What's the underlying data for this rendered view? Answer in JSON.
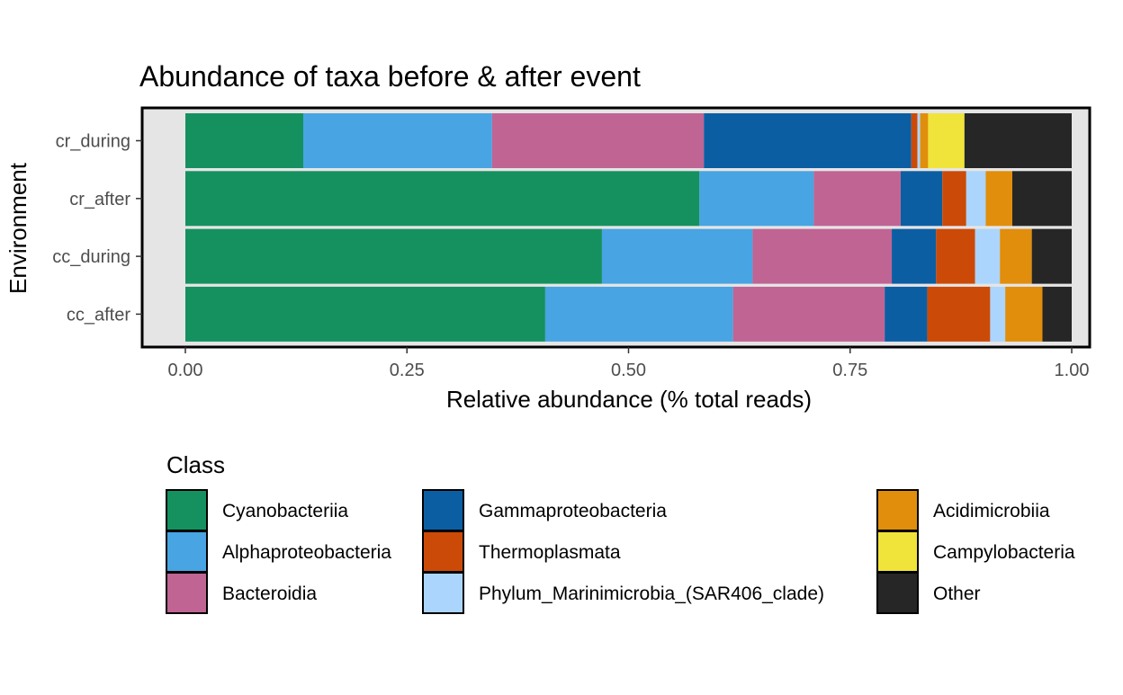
{
  "chart_data": {
    "type": "bar",
    "orientation": "horizontal",
    "stacked": true,
    "title": "Abundance of taxa before & after event",
    "xlabel": "Relative abundance (% total reads)",
    "ylabel": "Environment",
    "xlim": [
      0,
      1
    ],
    "x_ticks": [
      "0.00",
      "0.25",
      "0.50",
      "0.75",
      "1.00"
    ],
    "categories": [
      "cr_during",
      "cr_after",
      "cc_during",
      "cc_after"
    ],
    "legend_title": "Class",
    "legend_position": "bottom",
    "grid": false,
    "series": [
      {
        "name": "Cyanobacteriia",
        "color": "#159160",
        "values": [
          0.133,
          0.58,
          0.47,
          0.406
        ]
      },
      {
        "name": "Alphaproteobacteria",
        "color": "#48A4E2",
        "values": [
          0.213,
          0.129,
          0.17,
          0.212
        ]
      },
      {
        "name": "Bacteroidia",
        "color": "#C06494",
        "values": [
          0.239,
          0.098,
          0.157,
          0.171
        ]
      },
      {
        "name": "Gammaproteobacteria",
        "color": "#0C5EA3",
        "values": [
          0.234,
          0.047,
          0.05,
          0.048
        ]
      },
      {
        "name": "Thermoplasmata",
        "color": "#CC4A08",
        "values": [
          0.007,
          0.027,
          0.044,
          0.071
        ]
      },
      {
        "name": "Phylum_Marinimicrobia_(SAR406_clade)",
        "color": "#ABD5FC",
        "values": [
          0.003,
          0.022,
          0.028,
          0.017
        ]
      },
      {
        "name": "Acidimicrobiia",
        "color": "#E08E0C",
        "values": [
          0.009,
          0.03,
          0.036,
          0.042
        ]
      },
      {
        "name": "Campylobacteria",
        "color": "#F0E43A",
        "values": [
          0.041,
          0.0,
          0.0,
          0.0
        ]
      },
      {
        "name": "Other",
        "color": "#262626",
        "values": [
          0.121,
          0.067,
          0.045,
          0.033
        ]
      }
    ]
  }
}
